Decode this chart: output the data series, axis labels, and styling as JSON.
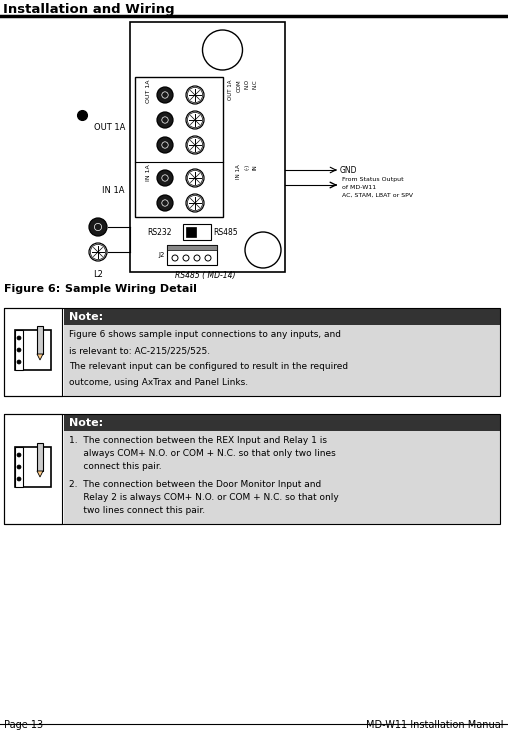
{
  "title": "Installation and Wiring",
  "figure_label": "Figure 6:",
  "figure_title": "   Sample Wiring Detail",
  "page_left": "Page 13",
  "page_right": "MD-W11 Installation Manual",
  "note1_title": "Note:",
  "note1_line1": "Figure 6 shows sample input connections to any inputs, and",
  "note1_line2": "is relevant to: AC-215/225/525.",
  "note1_line3": "The relevant input can be configured to result in the required",
  "note1_line4": "outcome, using AxTrax and Panel Links.",
  "note2_title": "Note:",
  "note2_item1a": "1.  The connection between the REX Input and Relay 1 is",
  "note2_item1b": "     always COM+ N.O. or COM + N.C. so that only two lines",
  "note2_item1c": "     connect this pair.",
  "note2_item2a": "2.  The connection between the Door Monitor Input and",
  "note2_item2b": "     Relay 2 is always COM+ N.O. or COM + N.C. so that only",
  "note2_item2c": "     two lines connect this pair.",
  "gnd_label": "GND",
  "from_label1": "From Status Output",
  "from_label2": "of MD-W11",
  "from_label3": "AC, STAM, LBAT or SPV",
  "rs232_label": "RS232",
  "rs485_label": "RS485",
  "rs485_md14": "RS485 ( MD-14)",
  "j2_label": "J2",
  "l2_label": "L2",
  "out1a_label": "OUT 1A",
  "in1a_label": "IN 1A",
  "nc_label": "N.C",
  "no_label": "N.O",
  "com_label": "COM",
  "out1a_r_label": "OUT 1A",
  "in_label": "IN",
  "minus_label": "(-)",
  "in1a_r_label": "IN 1A",
  "bg_color": "#ffffff",
  "note_header_bg": "#333333",
  "note_header_text": "#ffffff",
  "note_body_bg": "#d8d8d8",
  "border_color": "#000000",
  "panel_bg": "#ffffff",
  "diag_border": "#000000"
}
